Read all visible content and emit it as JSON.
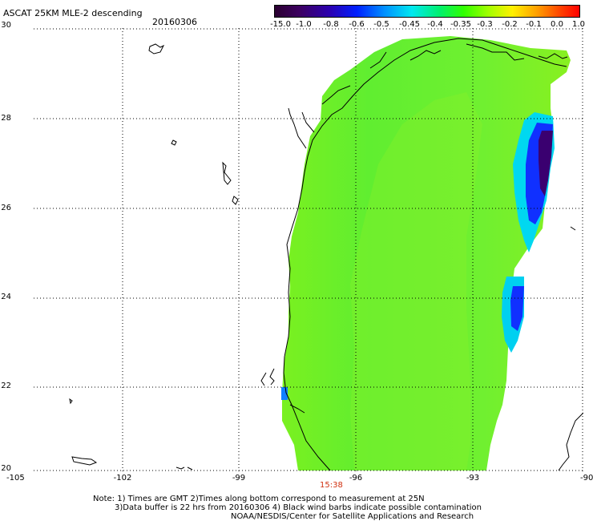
{
  "header": {
    "title": "ASCAT 25KM MLE-2 descending",
    "date": "20160306"
  },
  "colorbar": {
    "labels": [
      "-15.0",
      "-1.0",
      "-0.8",
      "-0.6",
      "-0.5",
      "-0.45",
      "-0.4",
      "-0.35",
      "-0.3",
      "-0.2",
      "-0.1",
      "0.0",
      "1.0"
    ],
    "colors": [
      "#2a0030",
      "#3c0060",
      "#2b00b0",
      "#0020ff",
      "#0090ff",
      "#00e8f0",
      "#00f070",
      "#30ff00",
      "#a0ff00",
      "#fff000",
      "#ffa000",
      "#ff4000",
      "#ff0000"
    ]
  },
  "map": {
    "lat_labels": [
      "30",
      "28",
      "26",
      "24",
      "22",
      "20"
    ],
    "lon_labels": [
      "-105",
      "-102",
      "-99",
      "-96",
      "-93",
      "-90"
    ],
    "pass_time": "15:38",
    "swath_color_main": "#66f020",
    "swath_color_edge": "#0020ff",
    "swath_color_min": "#2a0050"
  },
  "notes": {
    "line1": "Note: 1) Times are GMT 2)Times along bottom correspond to measurement at 25N",
    "line2": "3)Data buffer is 22 hrs from 20160306 4) Black wind barbs indicate possible contamination",
    "line3": "NOAA/NESDIS/Center for Satellite Applications and Research"
  }
}
